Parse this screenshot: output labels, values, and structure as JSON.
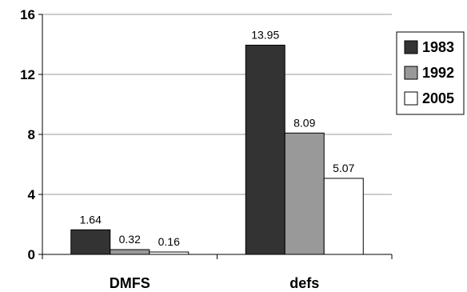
{
  "chart_data": {
    "type": "bar",
    "categories": [
      "DMFS",
      "defs"
    ],
    "series": [
      {
        "name": "1983",
        "values": [
          1.64,
          13.95
        ],
        "labels": [
          "1.64",
          "13.95"
        ],
        "color": "#333333"
      },
      {
        "name": "1992",
        "values": [
          0.32,
          8.09
        ],
        "labels": [
          "0.32",
          "8.09"
        ],
        "color": "#999999"
      },
      {
        "name": "2005",
        "values": [
          0.16,
          5.07
        ],
        "labels": [
          "0.16",
          "5.07"
        ],
        "color": "#ffffff"
      }
    ],
    "yticks": [
      0,
      4,
      8,
      12,
      16
    ],
    "ylim": [
      0,
      16
    ],
    "grid": true,
    "legend_position": "right",
    "title": "",
    "xlabel": "",
    "ylabel": ""
  }
}
